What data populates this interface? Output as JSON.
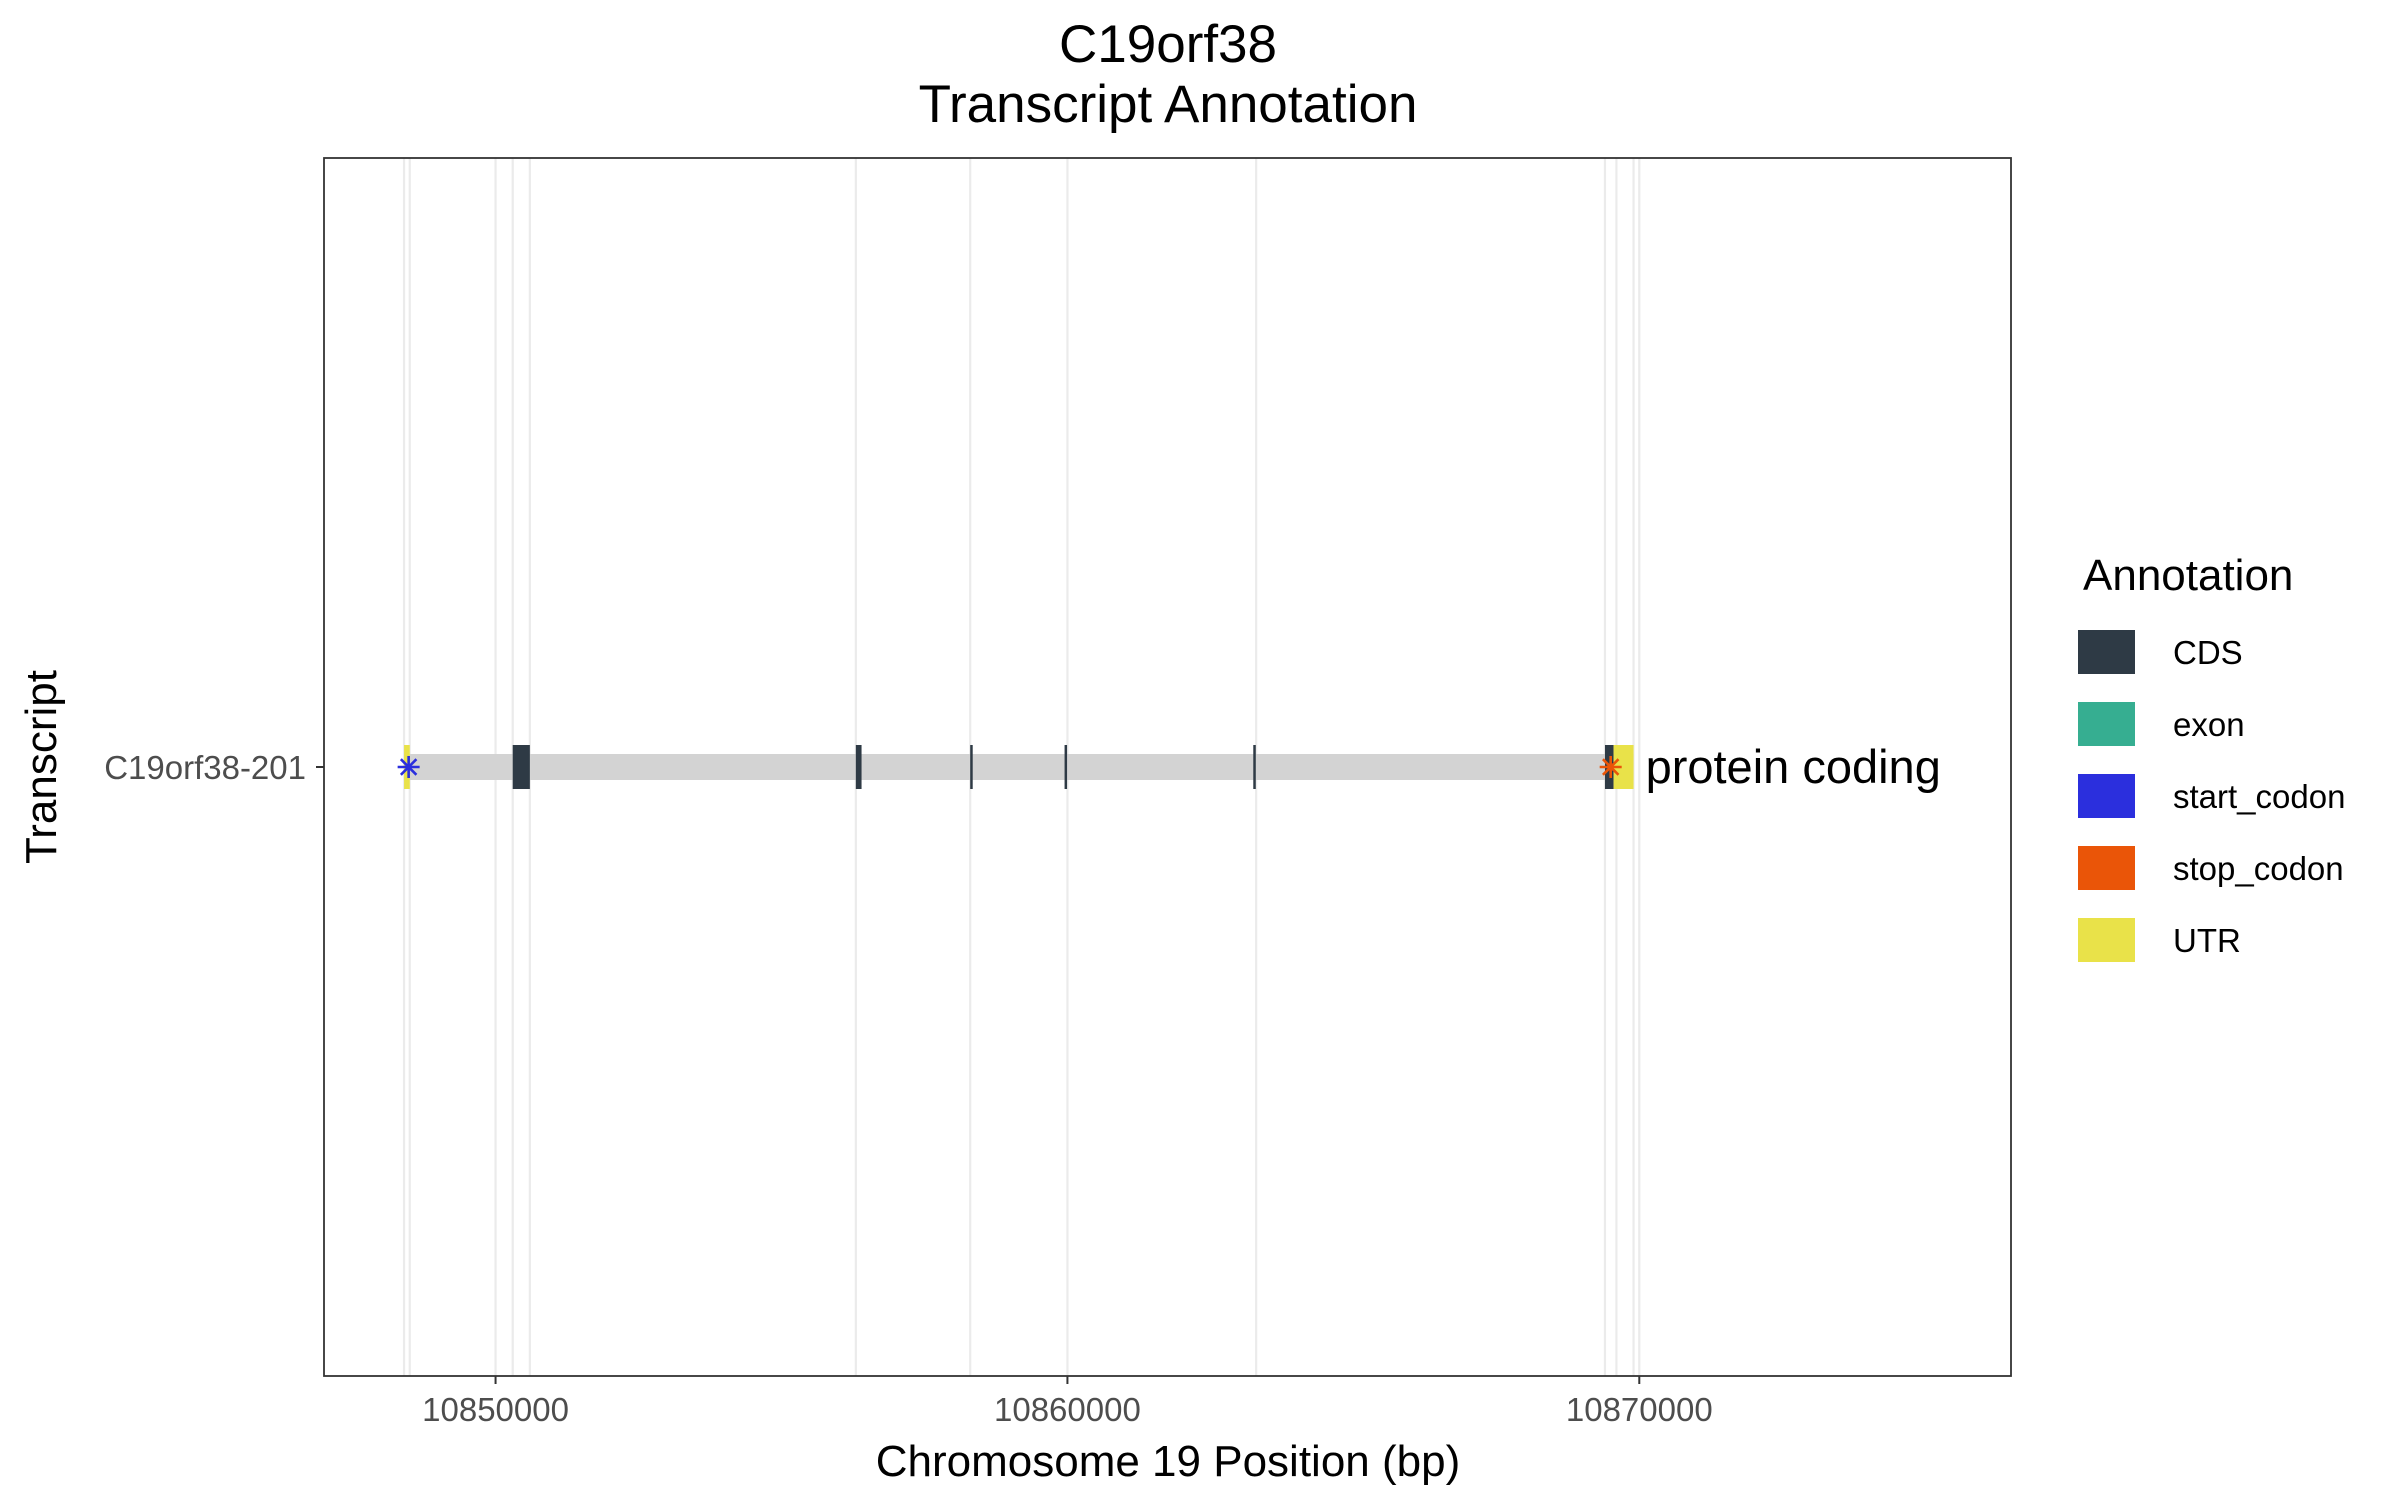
{
  "chart_data": {
    "type": "transcript-annotation",
    "title": [
      "C19orf38",
      "Transcript Annotation"
    ],
    "xlabel": "Chromosome 19 Position (bp)",
    "ylabel": "Transcript",
    "xlim": [
      10847000,
      10876500
    ],
    "x_ticks": [
      10850000,
      10860000,
      10870000
    ],
    "x_tick_labels": [
      "10850000",
      "10860000",
      "10870000"
    ],
    "grid_x_extra": [
      10848400,
      10848500,
      10850300,
      10850600,
      10856300,
      10858300,
      10863300,
      10869400,
      10869600,
      10869900
    ],
    "grid": true,
    "legend_position": "right",
    "legend": {
      "title": "Annotation",
      "items": [
        {
          "label": "CDS",
          "color": "#2e3a45"
        },
        {
          "label": "exon",
          "color": "#36ae91"
        },
        {
          "label": "start_codon",
          "color": "#2b2fdd"
        },
        {
          "label": "stop_codon",
          "color": "#ea5508"
        },
        {
          "label": "UTR",
          "color": "#e9e249"
        }
      ]
    },
    "intron_color": "#d3d3d3",
    "transcripts": [
      {
        "name": "C19orf38-201",
        "biotype_label": "protein coding",
        "start": 10848400,
        "end": 10869900,
        "features": [
          {
            "type": "UTR",
            "start": 10848400,
            "end": 10848500
          },
          {
            "type": "CDS",
            "start": 10850300,
            "end": 10850600
          },
          {
            "type": "CDS",
            "start": 10856300,
            "end": 10856400
          },
          {
            "type": "CDS",
            "start": 10858300,
            "end": 10858330
          },
          {
            "type": "CDS",
            "start": 10859950,
            "end": 10859980
          },
          {
            "type": "CDS",
            "start": 10863250,
            "end": 10863280
          },
          {
            "type": "CDS",
            "start": 10869400,
            "end": 10869550
          },
          {
            "type": "UTR",
            "start": 10869550,
            "end": 10869900
          }
        ],
        "start_codon": 10848480,
        "stop_codon": 10869500
      }
    ]
  }
}
